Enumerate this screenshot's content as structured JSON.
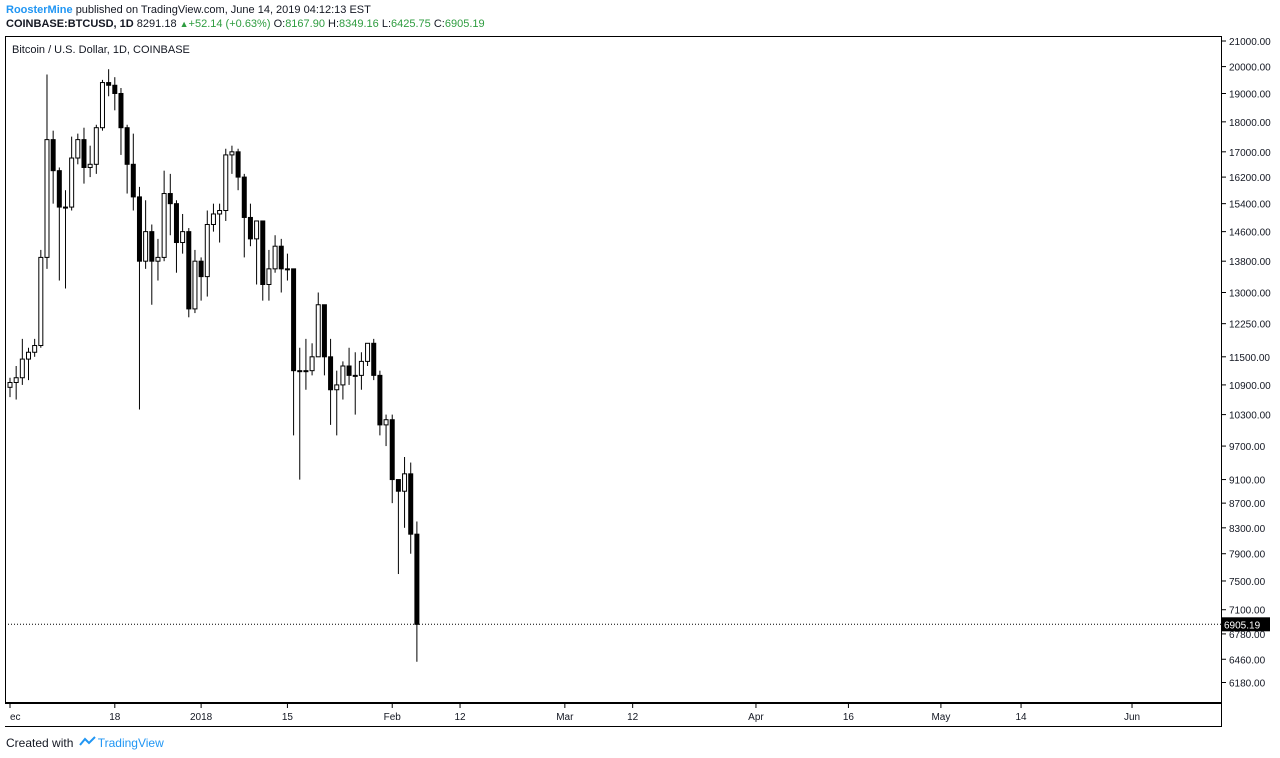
{
  "header": {
    "author": "RoosterMine",
    "published": "published on TradingView.com, June 14, 2019 04:12:13 EST"
  },
  "symbol_line": {
    "symbol": "COINBASE:BTCUSD, 1D",
    "last": "8291.18",
    "change": "+52.14 (+0.63%)",
    "o_label": "O:",
    "o_value": "8167.90",
    "h_label": "H:",
    "h_value": "8349.16",
    "l_label": "L:",
    "l_value": "6425.75",
    "c_label": "C:",
    "c_value": "6905.19",
    "up_color": "#2e9c3f"
  },
  "footer": {
    "created_with": "Created with",
    "brand": "TradingView"
  },
  "chart_data": {
    "type": "candlestick",
    "title": "Bitcoin / U.S. Dollar, 1D, COINBASE",
    "price_scale": "log",
    "ylim": [
      6000,
      21000
    ],
    "y_ticks": [
      21000,
      20000,
      19000,
      18000,
      17000,
      16200,
      15400,
      14600,
      13800,
      13000,
      12250,
      11500,
      10900,
      10300,
      9700,
      9100,
      8700,
      8300,
      7900,
      7500,
      7100,
      6780,
      6460,
      6180
    ],
    "y_tick_labels": [
      "21000.00",
      "20000.00",
      "19000.00",
      "18000.00",
      "17000.00",
      "16200.00",
      "15400.00",
      "14600.00",
      "13800.00",
      "13000.00",
      "12250.00",
      "11500.00",
      "10900.00",
      "10300.00",
      "9700.00",
      "9100.00",
      "8700.00",
      "8300.00",
      "7900.00",
      "7500.00",
      "7100.00",
      "6780.00",
      "6460.00",
      "6180.00"
    ],
    "x_ticks": [
      {
        "label": "ec",
        "date": "2017-12-01"
      },
      {
        "label": "18",
        "date": "2017-12-18"
      },
      {
        "label": "2018",
        "date": "2018-01-01"
      },
      {
        "label": "15",
        "date": "2018-01-15"
      },
      {
        "label": "Feb",
        "date": "2018-02-01"
      },
      {
        "label": "12",
        "date": "2018-02-12"
      },
      {
        "label": "Mar",
        "date": "2018-03-01"
      },
      {
        "label": "12",
        "date": "2018-03-12"
      },
      {
        "label": "Apr",
        "date": "2018-04-01"
      },
      {
        "label": "16",
        "date": "2018-04-16"
      },
      {
        "label": "May",
        "date": "2018-05-01"
      },
      {
        "label": "14",
        "date": "2018-05-14"
      },
      {
        "label": "Jun",
        "date": "2018-06-01"
      }
    ],
    "x_range": [
      "2017-12-01",
      "2018-06-13"
    ],
    "last_price": 6905.19,
    "last_price_label": "6905.19",
    "up_color": "#ffffff",
    "down_color": "#000000",
    "candles": [
      {
        "date": "2017-12-01",
        "o": 10850,
        "h": 11050,
        "l": 10650,
        "c": 10950
      },
      {
        "date": "2017-12-02",
        "o": 10950,
        "h": 11300,
        "l": 10600,
        "c": 11050
      },
      {
        "date": "2017-12-03",
        "o": 11050,
        "h": 11900,
        "l": 10900,
        "c": 11450
      },
      {
        "date": "2017-12-04",
        "o": 11450,
        "h": 11700,
        "l": 11000,
        "c": 11600
      },
      {
        "date": "2017-12-05",
        "o": 11600,
        "h": 11900,
        "l": 11500,
        "c": 11750
      },
      {
        "date": "2017-12-06",
        "o": 11750,
        "h": 14100,
        "l": 11700,
        "c": 13900
      },
      {
        "date": "2017-12-07",
        "o": 13900,
        "h": 19700,
        "l": 13600,
        "c": 17400
      },
      {
        "date": "2017-12-08",
        "o": 17400,
        "h": 17700,
        "l": 15400,
        "c": 16400
      },
      {
        "date": "2017-12-09",
        "o": 16400,
        "h": 16500,
        "l": 13300,
        "c": 15300
      },
      {
        "date": "2017-12-10",
        "o": 15300,
        "h": 15800,
        "l": 13100,
        "c": 15300
      },
      {
        "date": "2017-12-11",
        "o": 15300,
        "h": 17500,
        "l": 15200,
        "c": 16800
      },
      {
        "date": "2017-12-12",
        "o": 16800,
        "h": 17600,
        "l": 16600,
        "c": 17400
      },
      {
        "date": "2017-12-13",
        "o": 17400,
        "h": 17800,
        "l": 16000,
        "c": 16500
      },
      {
        "date": "2017-12-14",
        "o": 16500,
        "h": 17200,
        "l": 16200,
        "c": 16600
      },
      {
        "date": "2017-12-15",
        "o": 16600,
        "h": 17900,
        "l": 16300,
        "c": 17800
      },
      {
        "date": "2017-12-16",
        "o": 17800,
        "h": 19500,
        "l": 17700,
        "c": 19400
      },
      {
        "date": "2017-12-17",
        "o": 19400,
        "h": 19900,
        "l": 18900,
        "c": 19300
      },
      {
        "date": "2017-12-18",
        "o": 19300,
        "h": 19600,
        "l": 18400,
        "c": 19000
      },
      {
        "date": "2017-12-19",
        "o": 19000,
        "h": 19200,
        "l": 16900,
        "c": 17800
      },
      {
        "date": "2017-12-20",
        "o": 17800,
        "h": 17900,
        "l": 15700,
        "c": 16600
      },
      {
        "date": "2017-12-21",
        "o": 16600,
        "h": 17600,
        "l": 15200,
        "c": 15600
      },
      {
        "date": "2017-12-22",
        "o": 15600,
        "h": 15900,
        "l": 10400,
        "c": 13800
      },
      {
        "date": "2017-12-23",
        "o": 13800,
        "h": 15500,
        "l": 13600,
        "c": 14600
      },
      {
        "date": "2017-12-24",
        "o": 14600,
        "h": 14800,
        "l": 12700,
        "c": 13800
      },
      {
        "date": "2017-12-25",
        "o": 13800,
        "h": 14400,
        "l": 13300,
        "c": 13900
      },
      {
        "date": "2017-12-26",
        "o": 13900,
        "h": 16400,
        "l": 13800,
        "c": 15700
      },
      {
        "date": "2017-12-27",
        "o": 15700,
        "h": 16300,
        "l": 14500,
        "c": 15400
      },
      {
        "date": "2017-12-28",
        "o": 15400,
        "h": 15500,
        "l": 13500,
        "c": 14300
      },
      {
        "date": "2017-12-29",
        "o": 14300,
        "h": 15100,
        "l": 14000,
        "c": 14600
      },
      {
        "date": "2017-12-30",
        "o": 14600,
        "h": 14700,
        "l": 12400,
        "c": 12600
      },
      {
        "date": "2017-12-31",
        "o": 12600,
        "h": 14100,
        "l": 12500,
        "c": 13800
      },
      {
        "date": "2018-01-01",
        "o": 13800,
        "h": 13900,
        "l": 12800,
        "c": 13400
      },
      {
        "date": "2018-01-02",
        "o": 13400,
        "h": 15200,
        "l": 12900,
        "c": 14800
      },
      {
        "date": "2018-01-03",
        "o": 14800,
        "h": 15400,
        "l": 14600,
        "c": 15100
      },
      {
        "date": "2018-01-04",
        "o": 15100,
        "h": 15400,
        "l": 14300,
        "c": 15200
      },
      {
        "date": "2018-01-05",
        "o": 15200,
        "h": 17100,
        "l": 14900,
        "c": 16900
      },
      {
        "date": "2018-01-06",
        "o": 16900,
        "h": 17200,
        "l": 16300,
        "c": 17000
      },
      {
        "date": "2018-01-07",
        "o": 17000,
        "h": 17100,
        "l": 15800,
        "c": 16200
      },
      {
        "date": "2018-01-08",
        "o": 16200,
        "h": 16300,
        "l": 13900,
        "c": 15000
      },
      {
        "date": "2018-01-09",
        "o": 15000,
        "h": 15400,
        "l": 14200,
        "c": 14400
      },
      {
        "date": "2018-01-10",
        "o": 14400,
        "h": 14900,
        "l": 13200,
        "c": 14900
      },
      {
        "date": "2018-01-11",
        "o": 14900,
        "h": 14900,
        "l": 12800,
        "c": 13200
      },
      {
        "date": "2018-01-12",
        "o": 13200,
        "h": 14100,
        "l": 12800,
        "c": 13600
      },
      {
        "date": "2018-01-13",
        "o": 13600,
        "h": 14500,
        "l": 13500,
        "c": 14200
      },
      {
        "date": "2018-01-14",
        "o": 14200,
        "h": 14400,
        "l": 13000,
        "c": 13600
      },
      {
        "date": "2018-01-15",
        "o": 13600,
        "h": 14000,
        "l": 13300,
        "c": 13600
      },
      {
        "date": "2018-01-16",
        "o": 13600,
        "h": 13600,
        "l": 9900,
        "c": 11200
      },
      {
        "date": "2018-01-17",
        "o": 11200,
        "h": 11700,
        "l": 9100,
        "c": 11200
      },
      {
        "date": "2018-01-18",
        "o": 11200,
        "h": 11900,
        "l": 10800,
        "c": 11200
      },
      {
        "date": "2018-01-19",
        "o": 11200,
        "h": 11800,
        "l": 11100,
        "c": 11500
      },
      {
        "date": "2018-01-20",
        "o": 11500,
        "h": 13000,
        "l": 11500,
        "c": 12700
      },
      {
        "date": "2018-01-21",
        "o": 12700,
        "h": 12700,
        "l": 11100,
        "c": 11500
      },
      {
        "date": "2018-01-22",
        "o": 11500,
        "h": 11900,
        "l": 10100,
        "c": 10800
      },
      {
        "date": "2018-01-23",
        "o": 10800,
        "h": 11200,
        "l": 9900,
        "c": 10900
      },
      {
        "date": "2018-01-24",
        "o": 10900,
        "h": 11400,
        "l": 10600,
        "c": 11300
      },
      {
        "date": "2018-01-25",
        "o": 11300,
        "h": 11700,
        "l": 10900,
        "c": 11100
      },
      {
        "date": "2018-01-26",
        "o": 11100,
        "h": 11600,
        "l": 10300,
        "c": 11100
      },
      {
        "date": "2018-01-27",
        "o": 11100,
        "h": 11600,
        "l": 10800,
        "c": 11400
      },
      {
        "date": "2018-01-28",
        "o": 11400,
        "h": 11800,
        "l": 11300,
        "c": 11800
      },
      {
        "date": "2018-01-29",
        "o": 11800,
        "h": 11900,
        "l": 11000,
        "c": 11100
      },
      {
        "date": "2018-01-30",
        "o": 11100,
        "h": 11200,
        "l": 9900,
        "c": 10100
      },
      {
        "date": "2018-01-31",
        "o": 10100,
        "h": 10300,
        "l": 9700,
        "c": 10200
      },
      {
        "date": "2018-02-01",
        "o": 10200,
        "h": 10300,
        "l": 8700,
        "c": 9100
      },
      {
        "date": "2018-02-02",
        "o": 9100,
        "h": 9100,
        "l": 7600,
        "c": 8900
      },
      {
        "date": "2018-02-03",
        "o": 8900,
        "h": 9500,
        "l": 8300,
        "c": 9200
      },
      {
        "date": "2018-02-04",
        "o": 9200,
        "h": 9400,
        "l": 7900,
        "c": 8200
      },
      {
        "date": "2018-02-05",
        "o": 8200,
        "h": 8400,
        "l": 6430,
        "c": 6905
      }
    ]
  }
}
